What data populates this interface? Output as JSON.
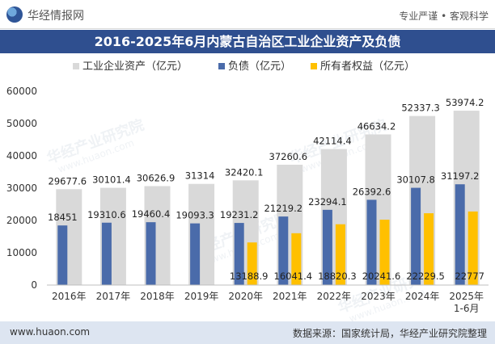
{
  "header": {
    "logo_text": "华经情报网",
    "slogan": "专业严谨 • 客观科学"
  },
  "title": "2016-2025年6月内蒙古自治区工业企业资产及负债",
  "watermark": {
    "cn": "华经产业研究院",
    "url": "www.huaon.com"
  },
  "footer": {
    "url": "www.huaon.com",
    "source": "数据来源：国家统计局，华经产业研究院整理"
  },
  "colors": {
    "assets": "#d9d9d9",
    "liabilities": "#4a6baa",
    "equity": "#ffc000",
    "title_bg": "#2f4f8f",
    "footer_bg": "#dde5f1"
  },
  "chart_data": {
    "type": "bar",
    "categories": [
      "2016年",
      "2017年",
      "2018年",
      "2019年",
      "2020年",
      "2021年",
      "2022年",
      "2023年",
      "2024年",
      "2025年\n1-6月"
    ],
    "series": [
      {
        "name": "工业企业资产（亿元）",
        "values": [
          29677.6,
          30101.4,
          30626.9,
          31314,
          32420.1,
          37260.6,
          42114.4,
          46634.2,
          52337.3,
          53974.2
        ],
        "labels": [
          "29677.6",
          "30101.4",
          "30626.9",
          "31314",
          "32420.1",
          "37260.6",
          "42114.4",
          "46634.2",
          "52337.3",
          "53974.2"
        ]
      },
      {
        "name": "负债（亿元）",
        "values": [
          18451,
          19310.6,
          19460.4,
          19093.3,
          19231.2,
          21219.2,
          23294.1,
          26392.6,
          30107.8,
          31197.2
        ],
        "labels": [
          "18451",
          "19310.6",
          "19460.4",
          "19093.3",
          "19231.2",
          "21219.2",
          "23294.1",
          "26392.6",
          "30107.8",
          "31197.2"
        ]
      },
      {
        "name": "所有者权益（亿元）",
        "values": [
          null,
          null,
          null,
          null,
          13188.9,
          16041.4,
          18820.3,
          20241.6,
          22229.5,
          22777
        ],
        "labels": [
          "",
          "",
          "",
          "",
          "13188.9",
          "16041.4",
          "18820.3",
          "20241.6",
          "22229.5",
          "22777"
        ]
      }
    ],
    "yticks": [
      "0",
      "10000",
      "20000",
      "30000",
      "40000",
      "50000",
      "60000"
    ],
    "ylim": [
      0,
      60000
    ],
    "legend_position": "top-center",
    "grid": false
  }
}
